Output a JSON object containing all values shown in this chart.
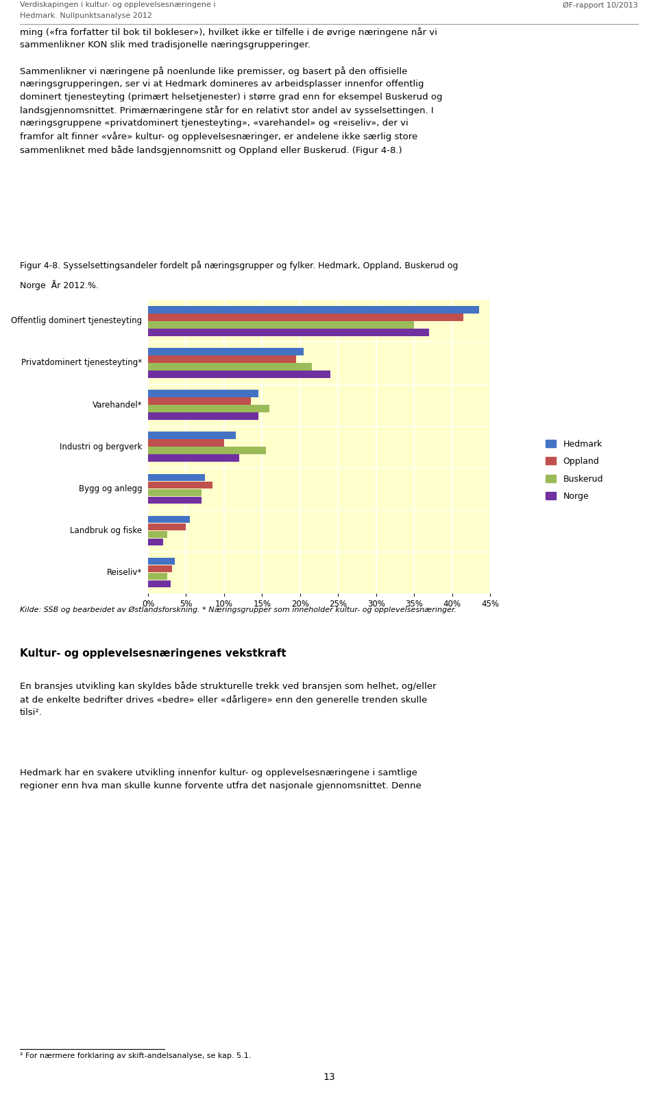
{
  "categories": [
    "Offentlig dominert tjenesteyting",
    "Privatdominert tjenesteyting*",
    "Varehandel*",
    "Industri og bergverk",
    "Bygg og anlegg",
    "Landbruk og fiske",
    "Reiseliv*"
  ],
  "series": {
    "Hedmark": [
      43.5,
      20.5,
      14.5,
      11.5,
      7.5,
      5.5,
      3.5
    ],
    "Oppland": [
      41.5,
      19.5,
      13.5,
      10.0,
      8.5,
      5.0,
      3.2
    ],
    "Buskerud": [
      35.0,
      21.5,
      16.0,
      15.5,
      7.0,
      2.5,
      2.5
    ],
    "Norge": [
      37.0,
      24.0,
      14.5,
      12.0,
      7.0,
      2.0,
      3.0
    ]
  },
  "colors": {
    "Hedmark": "#4472C4",
    "Oppland": "#C0504D",
    "Buskerud": "#9BBB59",
    "Norge": "#7030A0"
  },
  "xlim": [
    0,
    45
  ],
  "xticks": [
    0,
    5,
    10,
    15,
    20,
    25,
    30,
    35,
    40,
    45
  ],
  "xticklabels": [
    "0%",
    "5%",
    "10%",
    "15%",
    "20%",
    "25%",
    "30%",
    "35%",
    "40%",
    "45%"
  ],
  "chart_bg": "#FFFFCC",
  "label_bg": "#D9D9D9",
  "figure_bg": "#FFFFFF",
  "header_line1": "Verdiskapingen i kultur- og opplevelsesnæringene i",
  "header_line2": "Hedmark. Nullpunktsanalyse 2012",
  "header_right": "ØF-rapport 10/2013",
  "fig_caption_line1": "Figur 4-8. Sysselsettingsandeler fordelt på næringsgrupper og fylker. Hedmark, Oppland, Buskerud og",
  "fig_caption_line2": "Norge  År 2012.%.",
  "source_text": "Kilde: SSB og bearbeidet av Østlandsforskning. * Næringsgrupper som inneholder kultur- og opplevelsesnæringer.",
  "body_above": "ming («fra forfatter til bok til bokleser»), hvilket ikke er tilfelle i de øvrige næringene når vi\nsammenlikner KON slik med tradisjonelle næringsgrupperinger.\n\nSammenlikner vi næringene på noenlunde like premisser, og basert på den offisielle\nnæringsgrupperingen, ser vi at Hedmark domineres av arbeidsplasser innenfor offentlig\ndominert tjenesteyting (primært helsetjenester) i større grad enn for eksempel Buskerud og\nlandsgjennomsnittet. Primærnæringene står for en relativt stor andel av sysselsettingen. I\nnæringsgruppene «privatdominert tjenesteyting», «varehandel» og «reiseliv», der vi\nframfor alt finner «våre» kultur- og opplevelsesnæringer, er andelene ikke særlig store\nsammenliknet med både landsgjennomsnitt og Oppland eller Buskerud. (Figur 4-8.)",
  "section_heading": "Kultur- og opplevelsesnæringenes vekstkraft",
  "body_below_1": "En bransjes utvikling kan skyldes både strukturelle trekk ved bransjen som helhet, og/eller\nat de enkelte bedrifter drives «bedre» eller «dårligere» enn den generelle trenden skulle\ntilsi².",
  "body_below_2": "Hedmark har en svakere utvikling innenfor kultur- og opplevelsesnæringene i samtlige\nregioner enn hva man skulle kunne forvente utfra det nasjonale gjennomsnittet. Denne",
  "footnote": "² For nærmere forklaring av skift-andelsanalyse, se kap. 5.1.",
  "page_number": "13",
  "bar_height": 0.18
}
